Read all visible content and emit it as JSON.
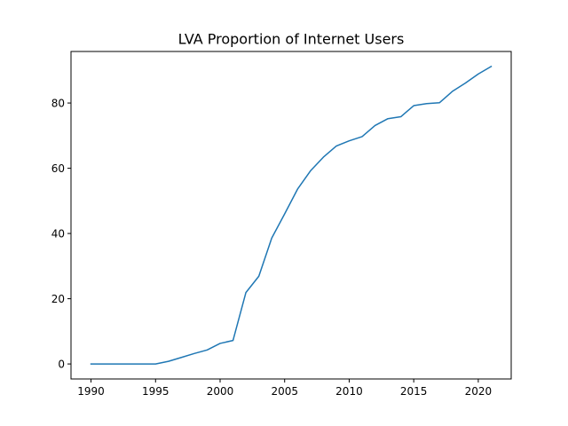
{
  "chart_data": {
    "type": "line",
    "title": "LVA Proportion of Internet Users",
    "xlabel": "",
    "ylabel": "",
    "xlim": [
      1988.45,
      2022.55
    ],
    "ylim": [
      -4.6,
      95.8
    ],
    "xticks": [
      1990,
      1995,
      2000,
      2005,
      2010,
      2015,
      2020
    ],
    "yticks": [
      0,
      20,
      40,
      60,
      80
    ],
    "grid": false,
    "legend": "none",
    "series": [
      {
        "color": "#1f77b4",
        "x": [
          1990,
          1991,
          1992,
          1993,
          1994,
          1995,
          1996,
          1997,
          1998,
          1999,
          2000,
          2001,
          2002,
          2003,
          2004,
          2005,
          2006,
          2007,
          2008,
          2009,
          2010,
          2011,
          2012,
          2013,
          2014,
          2015,
          2016,
          2017,
          2018,
          2019,
          2020,
          2021
        ],
        "y": [
          0,
          0,
          0,
          0,
          0,
          0,
          0.8,
          2.0,
          3.2,
          4.3,
          6.3,
          7.2,
          21.9,
          26.9,
          38.6,
          46.0,
          53.6,
          59.2,
          63.4,
          66.8,
          68.4,
          69.7,
          73.1,
          75.2,
          75.8,
          79.2,
          79.8,
          80.1,
          83.6,
          86.1,
          88.9,
          91.2
        ]
      }
    ]
  }
}
